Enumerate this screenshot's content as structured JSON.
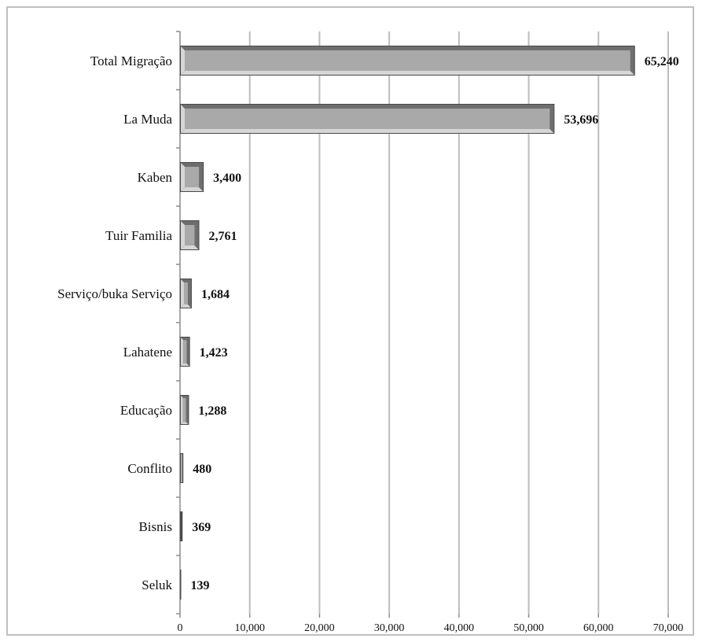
{
  "chart_data": {
    "type": "bar",
    "orientation": "horizontal",
    "categories": [
      "Total Migração",
      "La Muda",
      "Kaben",
      "Tuir Familia",
      "Serviço/buka Serviço",
      "Lahatene",
      "Educação",
      "Conflito",
      "Bisnis",
      "Seluk"
    ],
    "values": [
      65240,
      53696,
      3400,
      2761,
      1684,
      1423,
      1288,
      480,
      369,
      139
    ],
    "value_labels": [
      "65,240",
      "53,696",
      "3,400",
      "2,761",
      "1,684",
      "1,423",
      "1,288",
      "480",
      "369",
      "139"
    ],
    "xlim": [
      0,
      70000
    ],
    "x_ticks": [
      0,
      10000,
      20000,
      30000,
      40000,
      50000,
      60000,
      70000
    ],
    "x_tick_labels": [
      "0",
      "10,000",
      "20,000",
      "30,000",
      "40,000",
      "50,000",
      "60,000",
      "70,000"
    ],
    "grid": "vertical",
    "legend": "none",
    "colors": {
      "bar_border": "#4a4a4a",
      "bar_face": "#a9a9a9",
      "bar_highlight": "#d6d6d6",
      "bar_shadow": "#6e6e6e"
    }
  }
}
